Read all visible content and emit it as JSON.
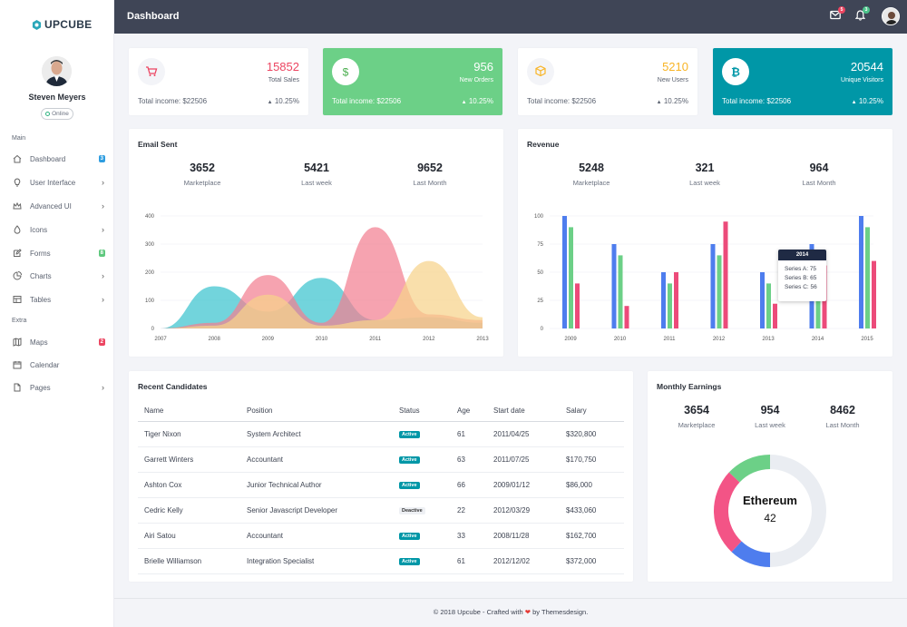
{
  "brand": {
    "name": "UPCUBE"
  },
  "user": {
    "name": "Steven Meyers",
    "status": "Online"
  },
  "sidebar": {
    "section_main": "Main",
    "section_extra": "Extra",
    "items": [
      {
        "label": "Dashboard",
        "icon": "home-icon",
        "badge": "3",
        "badge_color": "#2f9de0"
      },
      {
        "label": "User Interface",
        "icon": "lightbulb-icon",
        "chevron": true
      },
      {
        "label": "Advanced UI",
        "icon": "crown-icon",
        "chevron": true
      },
      {
        "label": "Icons",
        "icon": "droplet-icon",
        "chevron": true
      },
      {
        "label": "Forms",
        "icon": "edit-icon",
        "badge": "8",
        "badge_color": "#5fc87e"
      },
      {
        "label": "Charts",
        "icon": "pie-chart-icon",
        "chevron": true
      },
      {
        "label": "Tables",
        "icon": "table-icon",
        "chevron": true
      },
      {
        "label": "Maps",
        "icon": "map-icon",
        "badge": "2",
        "badge_color": "#ec4561"
      },
      {
        "label": "Calendar",
        "icon": "calendar-icon"
      },
      {
        "label": "Pages",
        "icon": "pages-icon",
        "chevron": true
      }
    ]
  },
  "header": {
    "title": "Dashboard",
    "mail_count": "5",
    "notif_count": "3",
    "mail_badge_color": "#ec4561",
    "notif_badge_color": "#4cc38a"
  },
  "stats": [
    {
      "value": "15852",
      "caption": "Total Sales",
      "income": "Total income: $22506",
      "pct": "10.25%",
      "icon": "cart-icon",
      "accent": "#ec4561",
      "bg": "#ffffff"
    },
    {
      "value": "956",
      "caption": "New Orders",
      "income": "Total income: $22506",
      "pct": "10.25%",
      "icon": "dollar-icon",
      "accent": "#ffffff",
      "bg": "#6cd087"
    },
    {
      "value": "5210",
      "caption": "New Users",
      "income": "Total income: $22506",
      "pct": "10.25%",
      "icon": "cube-icon",
      "accent": "#f8b425",
      "bg": "#ffffff"
    },
    {
      "value": "20544",
      "caption": "Unique Visitors",
      "income": "Total income: $22506",
      "pct": "10.25%",
      "icon": "bitcoin-icon",
      "accent": "#ffffff",
      "bg": "#0097a7"
    }
  ],
  "email": {
    "title": "Email Sent",
    "stats": [
      {
        "n": "3652",
        "l": "Marketplace"
      },
      {
        "n": "5421",
        "l": "Last week"
      },
      {
        "n": "9652",
        "l": "Last Month"
      }
    ]
  },
  "revenue": {
    "title": "Revenue",
    "stats": [
      {
        "n": "5248",
        "l": "Marketplace"
      },
      {
        "n": "321",
        "l": "Last week"
      },
      {
        "n": "964",
        "l": "Last Month"
      }
    ],
    "tooltip": {
      "year": "2014",
      "lines": [
        "Series A: 75",
        "Series B: 65",
        "Series C: 56"
      ]
    }
  },
  "candidates": {
    "title": "Recent Candidates",
    "columns": [
      "Name",
      "Position",
      "Status",
      "Age",
      "Start date",
      "Salary"
    ],
    "rows": [
      [
        "Tiger Nixon",
        "System Architect",
        "Active",
        "61",
        "2011/04/25",
        "$320,800"
      ],
      [
        "Garrett Winters",
        "Accountant",
        "Active",
        "63",
        "2011/07/25",
        "$170,750"
      ],
      [
        "Ashton Cox",
        "Junior Technical Author",
        "Active",
        "66",
        "2009/01/12",
        "$86,000"
      ],
      [
        "Cedric Kelly",
        "Senior Javascript Developer",
        "Deactive",
        "22",
        "2012/03/29",
        "$433,060"
      ],
      [
        "Airi Satou",
        "Accountant",
        "Active",
        "33",
        "2008/11/28",
        "$162,700"
      ],
      [
        "Brielle Williamson",
        "Integration Specialist",
        "Active",
        "61",
        "2012/12/02",
        "$372,000"
      ]
    ]
  },
  "earnings": {
    "title": "Monthly Earnings",
    "stats": [
      {
        "n": "3654",
        "l": "Marketplace"
      },
      {
        "n": "954",
        "l": "Last week"
      },
      {
        "n": "8462",
        "l": "Last Month"
      }
    ],
    "center_label": "Ethereum",
    "center_value": "42"
  },
  "footer": {
    "pre": "© 2018 Upcube - Crafted with",
    "post": "by Themesdesign."
  },
  "chart_data": [
    {
      "type": "area",
      "title": "Email Sent",
      "x": [
        2007,
        2008,
        2009,
        2010,
        2011,
        2012,
        2013
      ],
      "ylim": [
        0,
        400
      ],
      "yticks": [
        0,
        100,
        200,
        300,
        400
      ],
      "series": [
        {
          "values": [
            0,
            150,
            60,
            180,
            30,
            40,
            20
          ],
          "color": "#3bc4cf"
        },
        {
          "values": [
            0,
            20,
            190,
            20,
            360,
            50,
            30
          ],
          "color": "#f27f91"
        },
        {
          "values": [
            0,
            10,
            120,
            10,
            30,
            240,
            40
          ],
          "color": "#f7d28a"
        }
      ]
    },
    {
      "type": "bar",
      "title": "Revenue",
      "categories": [
        "2009",
        "2010",
        "2011",
        "2012",
        "2013",
        "2014",
        "2015"
      ],
      "ylim": [
        0,
        100
      ],
      "yticks": [
        0,
        25,
        50,
        75,
        100
      ],
      "series": [
        {
          "name": "Series A",
          "values": [
            100,
            75,
            50,
            75,
            50,
            75,
            100
          ],
          "color": "#4e7dee"
        },
        {
          "name": "Series B",
          "values": [
            90,
            65,
            40,
            65,
            40,
            65,
            90
          ],
          "color": "#6cd087"
        },
        {
          "name": "Series C",
          "values": [
            40,
            20,
            50,
            95,
            22,
            56,
            60
          ],
          "color": "#ec4b7a"
        }
      ]
    },
    {
      "type": "pie",
      "title": "Monthly Earnings",
      "slices": [
        {
          "value": 50,
          "color": "#eaedf2"
        },
        {
          "value": 12,
          "color": "#4e7dee"
        },
        {
          "value": 25,
          "color": "#f35486"
        },
        {
          "value": 13,
          "color": "#6cd087"
        }
      ]
    }
  ]
}
